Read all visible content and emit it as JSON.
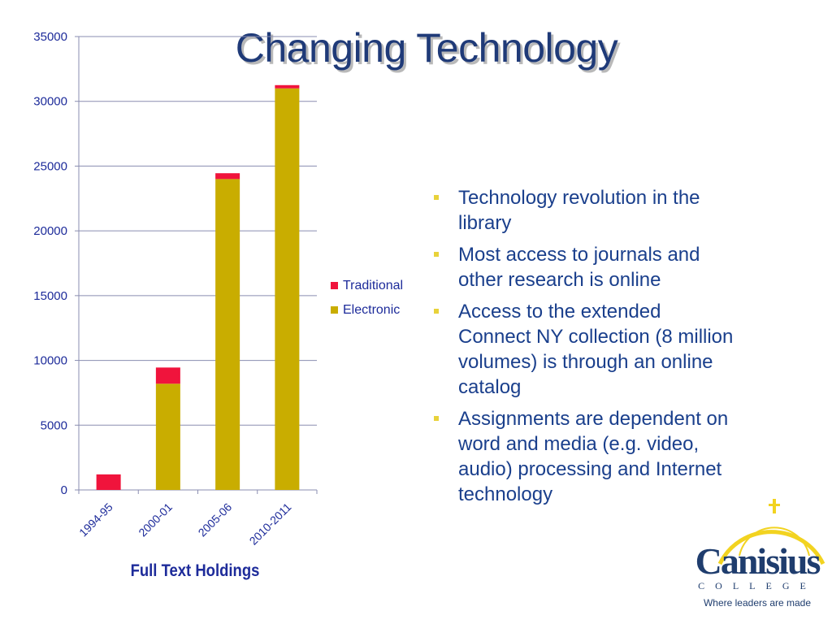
{
  "slide": {
    "title": "Changing Technology",
    "bullets": [
      "Technology revolution in the library",
      "Most access to journals and other research is online",
      "Access to the extended Connect NY collection (8 million volumes) is through an online catalog",
      "Assignments are dependent on word and media (e.g. video, audio) processing and Internet technology"
    ],
    "bullet_color": "#e8d23a",
    "text_color": "#1a3f8c"
  },
  "logo": {
    "name": "Canisius",
    "subtitle": "COLLEGE",
    "tagline": "Where leaders are made",
    "arc_color": "#f2d320",
    "text_color": "#1f3d6e"
  },
  "chart_data": {
    "type": "bar",
    "stacked": true,
    "caption": "Full Text Holdings",
    "categories": [
      "1994-95",
      "2000-01",
      "2005-06",
      "2010-2011"
    ],
    "series": [
      {
        "name": "Electronic",
        "color": "#c9ad00",
        "values": [
          0,
          8200,
          24000,
          31000
        ]
      },
      {
        "name": "Traditional",
        "color": "#f0143c",
        "values": [
          1200,
          1250,
          450,
          250
        ]
      }
    ],
    "yticks": [
      0,
      5000,
      10000,
      15000,
      20000,
      25000,
      30000,
      35000
    ],
    "ylim": [
      0,
      35000
    ],
    "grid": true,
    "legend_position": "right",
    "legend_order": [
      "Traditional",
      "Electronic"
    ]
  }
}
